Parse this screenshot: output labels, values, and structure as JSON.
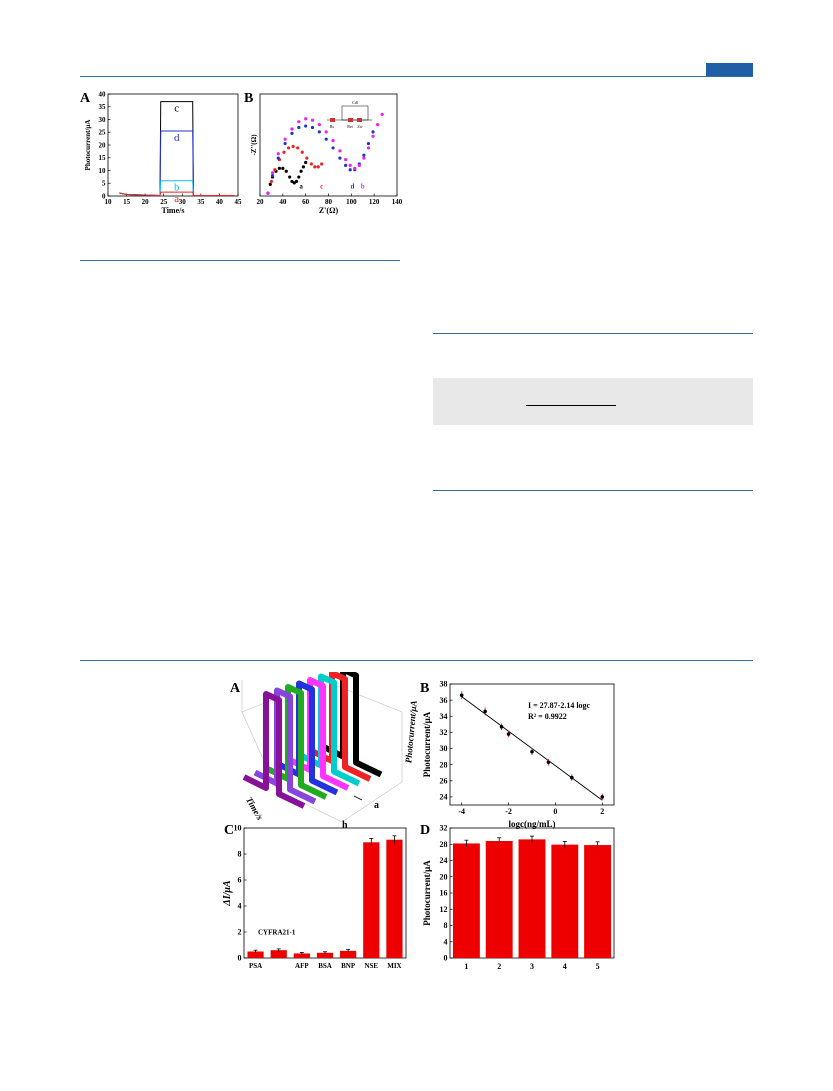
{
  "header": {
    "accent_color": "#1f5fa6"
  },
  "figures": {
    "top": {
      "panel_a": {
        "letter": "A",
        "chart_data": {
          "type": "line",
          "xlabel": "Time/s",
          "ylabel": "Photocurrent/μA",
          "xlim": [
            10,
            45
          ],
          "ylim": [
            0,
            40
          ],
          "xticks": [
            10,
            15,
            20,
            25,
            30,
            35,
            40,
            45
          ],
          "yticks": [
            0,
            5,
            10,
            15,
            20,
            25,
            30,
            35,
            40
          ],
          "light_on": [
            24,
            33
          ],
          "series": [
            {
              "name": "c",
              "on_value": 37,
              "off_value": 0.2,
              "color": "#000000"
            },
            {
              "name": "d",
              "on_value": 25.5,
              "off_value": 0.2,
              "color": "#2233cc"
            },
            {
              "name": "b",
              "on_value": 6,
              "off_value": 0.2,
              "color": "#11bbee"
            },
            {
              "name": "a",
              "on_value": 1.5,
              "off_value": 0.2,
              "color": "#ee2222"
            }
          ]
        }
      },
      "panel_b": {
        "letter": "B",
        "chart_data": {
          "type": "scatter",
          "xlabel": "Z'(Ω)",
          "ylabel": "-Z''(Ω)",
          "xlim": [
            20,
            140
          ],
          "ylim": [
            0,
            35
          ],
          "xticks": [
            20,
            40,
            60,
            80,
            100,
            120,
            140
          ],
          "yticks": [
            0,
            5,
            10,
            15,
            20,
            25,
            30,
            35
          ],
          "circuit_labels": [
            "Cdl",
            "Rs",
            "Ret",
            "Zw"
          ],
          "series": [
            {
              "name": "a",
              "color": "#000000",
              "points": [
                [
                  27,
                  1
                ],
                [
                  29,
                  4
                ],
                [
                  31,
                  6.5
                ],
                [
                  34,
                  8.5
                ],
                [
                  37,
                  9.5
                ],
                [
                  40,
                  9.5
                ],
                [
                  43,
                  8.5
                ],
                [
                  46,
                  6.5
                ],
                [
                  48,
                  5
                ],
                [
                  50,
                  4.5
                ],
                [
                  52,
                  5
                ],
                [
                  54,
                  6.5
                ],
                [
                  56,
                  8.5
                ],
                [
                  58,
                  10
                ],
                [
                  60,
                  11.5
                ]
              ]
            },
            {
              "name": "c",
              "color": "#ee2222",
              "points": [
                [
                  27,
                  1
                ],
                [
                  30,
                  5
                ],
                [
                  33,
                  9
                ],
                [
                  37,
                  12.5
                ],
                [
                  41,
                  15
                ],
                [
                  45,
                  16.5
                ],
                [
                  49,
                  17
                ],
                [
                  53,
                  16.5
                ],
                [
                  57,
                  15
                ],
                [
                  61,
                  13
                ],
                [
                  65,
                  11
                ],
                [
                  68,
                  10
                ],
                [
                  71,
                  10
                ],
                [
                  74,
                  11
                ]
              ]
            },
            {
              "name": "d",
              "color": "#2233cc",
              "points": [
                [
                  27,
                  1
                ],
                [
                  31,
                  7
                ],
                [
                  36,
                  13
                ],
                [
                  42,
                  18
                ],
                [
                  48,
                  21.5
                ],
                [
                  54,
                  23.5
                ],
                [
                  60,
                  24
                ],
                [
                  66,
                  23.5
                ],
                [
                  72,
                  22
                ],
                [
                  78,
                  19.5
                ],
                [
                  84,
                  16.5
                ],
                [
                  90,
                  13
                ],
                [
                  95,
                  10.5
                ],
                [
                  99,
                  9
                ],
                [
                  103,
                  9
                ],
                [
                  107,
                  11
                ],
                [
                  111,
                  14
                ],
                [
                  115,
                  18
                ],
                [
                  119,
                  22
                ]
              ]
            },
            {
              "name": "b",
              "color": "#ee22ee",
              "points": [
                [
                  27,
                  1
                ],
                [
                  31,
                  8
                ],
                [
                  36,
                  14.5
                ],
                [
                  42,
                  19.5
                ],
                [
                  48,
                  23
                ],
                [
                  54,
                  25.5
                ],
                [
                  60,
                  26.5
                ],
                [
                  66,
                  26
                ],
                [
                  72,
                  24.5
                ],
                [
                  78,
                  22
                ],
                [
                  84,
                  19
                ],
                [
                  90,
                  15.5
                ],
                [
                  95,
                  12.5
                ],
                [
                  99,
                  10.5
                ],
                [
                  103,
                  9.5
                ],
                [
                  107,
                  10.5
                ],
                [
                  111,
                  13
                ],
                [
                  115,
                  16.5
                ],
                [
                  119,
                  20.5
                ],
                [
                  123,
                  24.5
                ],
                [
                  127,
                  28
                ]
              ]
            }
          ]
        }
      }
    },
    "bottom": {
      "panel_a": {
        "letter": "A",
        "chart_data": {
          "type": "line",
          "axis_labels": [
            "Time/s",
            "Photocurrent/μA"
          ],
          "series_labels": [
            "a",
            "h"
          ],
          "series": [
            {
              "color": "#000000"
            },
            {
              "color": "#ee2222"
            },
            {
              "color": "#00cccc"
            },
            {
              "color": "#ff33ff"
            },
            {
              "color": "#2233dd"
            },
            {
              "color": "#22aa22"
            },
            {
              "color": "#8844dd"
            },
            {
              "color": "#881199"
            }
          ]
        }
      },
      "panel_b": {
        "letter": "B",
        "chart_data": {
          "type": "scatter",
          "xlabel": "logc(ng/mL)",
          "ylabel": "Photocurrent/μA",
          "xlim": [
            -4.5,
            2.5
          ],
          "ylim": [
            23,
            38
          ],
          "xticks": [
            -4,
            -2,
            0,
            2
          ],
          "yticks": [
            24,
            26,
            28,
            30,
            32,
            34,
            36,
            38
          ],
          "equation": "I = 27.87-2.14 logc",
          "r_squared": "R² = 0.9922",
          "points": [
            {
              "x": -4,
              "y": 36.6,
              "err": 0.5
            },
            {
              "x": -3,
              "y": 34.6,
              "err": 0.5
            },
            {
              "x": -2.3,
              "y": 32.7,
              "err": 0.4
            },
            {
              "x": -2,
              "y": 31.8,
              "err": 0.4
            },
            {
              "x": -1,
              "y": 29.6,
              "err": 0.4
            },
            {
              "x": -0.3,
              "y": 28.3,
              "err": 0.4
            },
            {
              "x": 0.7,
              "y": 26.4,
              "err": 0.4
            },
            {
              "x": 2,
              "y": 24.0,
              "err": 0.4
            }
          ],
          "fit": {
            "intercept": 27.87,
            "slope": -2.14
          }
        }
      },
      "panel_c": {
        "letter": "C",
        "chart_data": {
          "type": "bar",
          "ylabel": "ΔI/μA",
          "ylim": [
            0,
            10
          ],
          "yticks": [
            0,
            2,
            4,
            6,
            8,
            10
          ],
          "categories": [
            "PSA",
            "CYFRA21-1",
            "AFP",
            "BSA",
            "BNP",
            "NSE",
            "MIX"
          ],
          "values": [
            0.5,
            0.6,
            0.35,
            0.4,
            0.55,
            8.9,
            9.1
          ],
          "errors": [
            0.1,
            0.1,
            0.08,
            0.08,
            0.1,
            0.3,
            0.3
          ],
          "bar_color": "#ee0000"
        }
      },
      "panel_d": {
        "letter": "D",
        "chart_data": {
          "type": "bar",
          "ylabel": "Photocurrent/μA",
          "ylim": [
            0,
            32
          ],
          "yticks": [
            0,
            4,
            8,
            12,
            16,
            20,
            24,
            28,
            32
          ],
          "categories": [
            "1",
            "2",
            "3",
            "4",
            "5"
          ],
          "values": [
            28.2,
            28.8,
            29.2,
            27.9,
            27.8
          ],
          "errors": [
            0.8,
            0.8,
            0.8,
            0.8,
            0.8
          ],
          "bar_color": "#ee0000"
        }
      }
    }
  }
}
